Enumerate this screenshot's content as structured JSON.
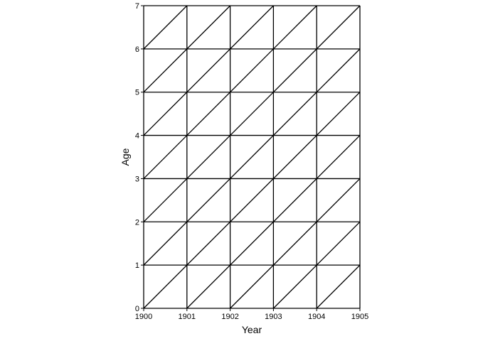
{
  "chart_data": {
    "type": "lexis-diagram",
    "xlabel": "Year",
    "ylabel": "Age",
    "xlim": [
      1900,
      1905
    ],
    "ylim": [
      0,
      7
    ],
    "x_ticks": [
      "1900",
      "1901",
      "1902",
      "1903",
      "1904",
      "1905"
    ],
    "y_ticks": [
      "0",
      "1",
      "2",
      "3",
      "4",
      "5",
      "6",
      "7"
    ],
    "grid": true,
    "lifelines": {
      "slope": 1,
      "intercepts": [
        -5,
        -4,
        -3,
        -2,
        -1,
        0,
        1,
        2,
        3,
        4,
        5,
        6
      ]
    },
    "line_color": "#000000"
  }
}
